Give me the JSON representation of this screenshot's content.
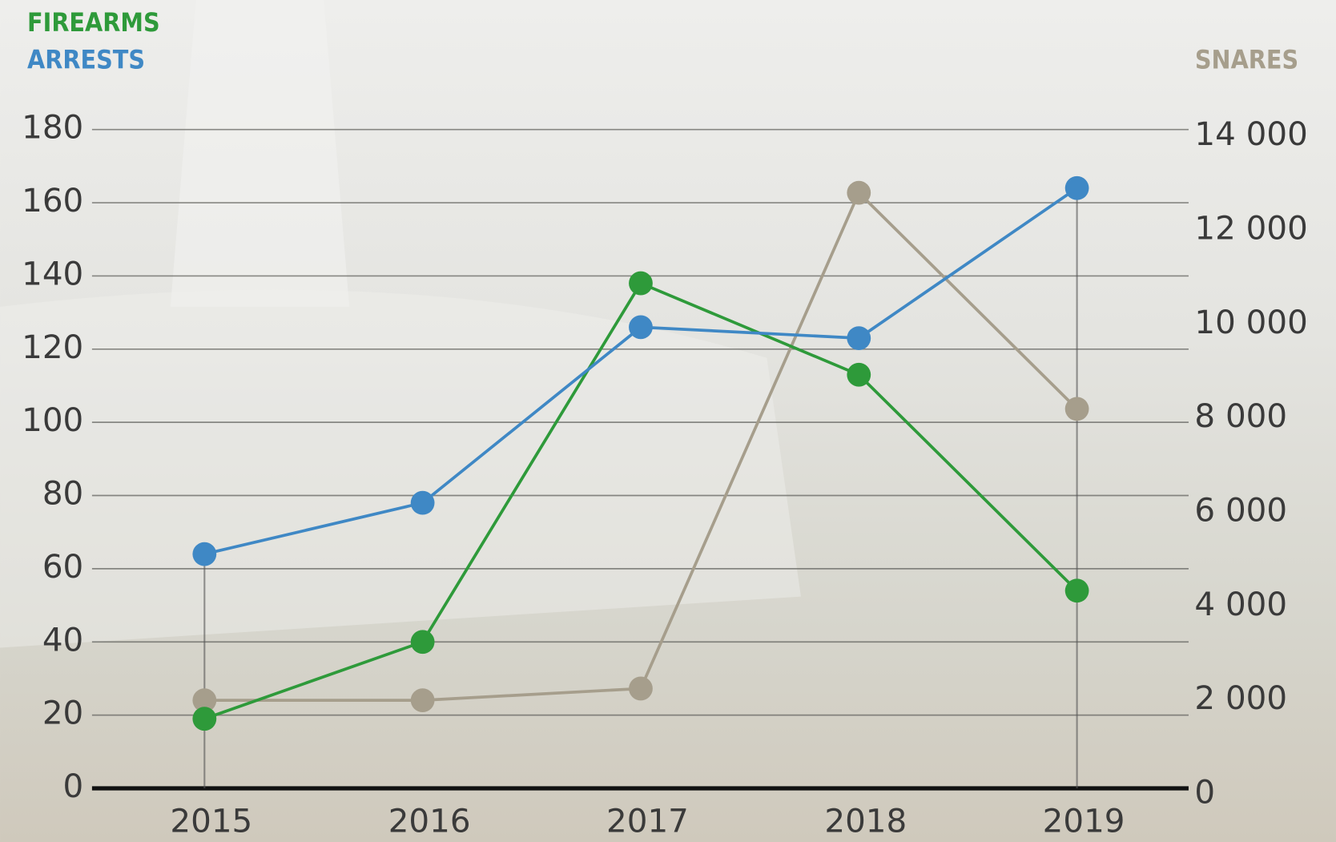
{
  "chart_data": {
    "type": "line",
    "categories": [
      "2015",
      "2016",
      "2017",
      "2018",
      "2019"
    ],
    "series": [
      {
        "name": "FIREARMS",
        "color": "#2e9a3a",
        "values": [
          19,
          40,
          138,
          113,
          54
        ]
      },
      {
        "name": "ARRESTS",
        "color": "#3f88c5",
        "values": [
          64,
          78,
          126,
          123,
          164
        ]
      },
      {
        "name": "SNARES",
        "color": "#a69e8c",
        "axis": "y2",
        "values": [
          2000,
          2000,
          2250,
          12800,
          8200
        ]
      }
    ],
    "ylim": [
      0,
      180
    ],
    "yticks": [
      0,
      20,
      40,
      60,
      80,
      100,
      120,
      140,
      160,
      180
    ],
    "y2lim": [
      0,
      14000
    ],
    "y2ticks": [
      0,
      {
        "value": 2000,
        "label": "2 000"
      },
      {
        "value": 4000,
        "label": "4 000"
      },
      {
        "value": 6000,
        "label": "6 000"
      },
      {
        "value": 8000,
        "label": "8 000"
      },
      {
        "value": 10000,
        "label": "10 000"
      },
      {
        "value": 12000,
        "label": "12 000"
      },
      {
        "value": 14000,
        "label": "14 000"
      }
    ],
    "grid": true
  }
}
